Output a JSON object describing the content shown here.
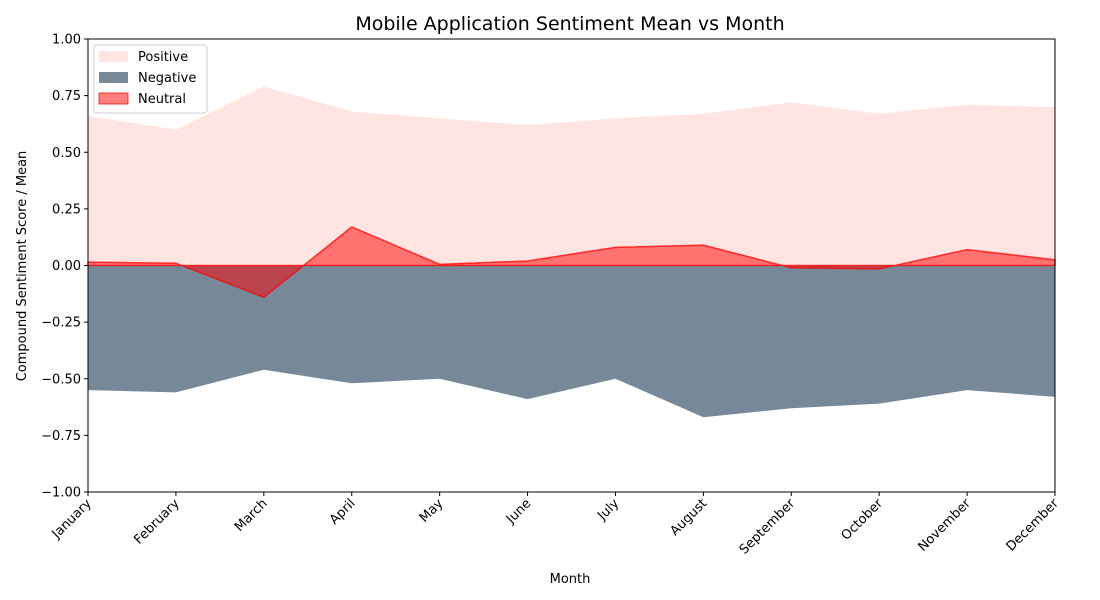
{
  "colors": {
    "positive": "#ffe4e1",
    "negative": "#778899",
    "neutral": "#ff0000",
    "background": "#ffffff",
    "axis": "#000000"
  },
  "chart_data": {
    "type": "area",
    "title": "Mobile Application Sentiment Mean vs Month",
    "xlabel": "Month",
    "ylabel": "Compound Sentiment Score / Mean",
    "ylim": [
      -1.0,
      1.0
    ],
    "yticks": [
      "−1.00",
      "−0.75",
      "−0.50",
      "−0.25",
      "0.00",
      "0.25",
      "0.50",
      "0.75",
      "1.00"
    ],
    "grid": false,
    "legend_position": "top-left",
    "categories": [
      "January",
      "February",
      "March",
      "April",
      "May",
      "June",
      "July",
      "August",
      "September",
      "October",
      "November",
      "December"
    ],
    "series": [
      {
        "name": "Positive",
        "color": "#ffe4e1",
        "opacity": 1.0,
        "values": [
          0.66,
          0.6,
          0.79,
          0.68,
          0.65,
          0.62,
          0.65,
          0.67,
          0.72,
          0.67,
          0.71,
          0.7
        ]
      },
      {
        "name": "Negative",
        "color": "#778899",
        "opacity": 1.0,
        "values": [
          -0.55,
          -0.56,
          -0.46,
          -0.52,
          -0.5,
          -0.59,
          -0.5,
          -0.67,
          -0.63,
          -0.61,
          -0.55,
          -0.58
        ]
      },
      {
        "name": "Neutral",
        "color": "#ff0000",
        "opacity": 0.5,
        "values": [
          0.015,
          0.01,
          -0.14,
          0.17,
          0.005,
          0.02,
          0.08,
          0.09,
          -0.01,
          -0.015,
          0.07,
          0.025
        ]
      }
    ]
  }
}
